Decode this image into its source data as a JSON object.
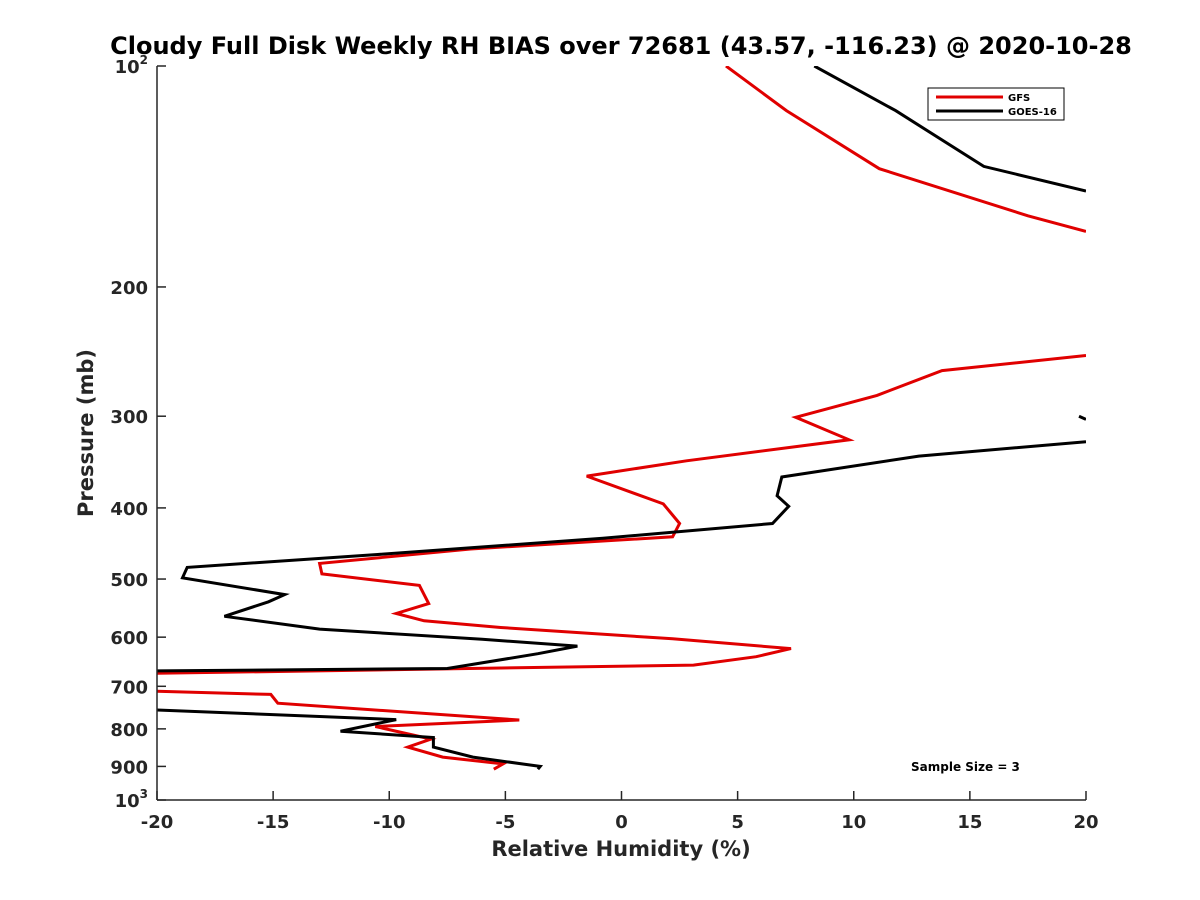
{
  "chart_data": {
    "type": "line",
    "title": "Cloudy Full Disk Weekly RH BIAS over 72681 (43.57, -116.23) @ 2020-10-28",
    "xlabel": "Relative Humidity (%)",
    "ylabel": "Pressure (mb)",
    "xlim": [
      -20,
      20
    ],
    "ylim": [
      100,
      1000
    ],
    "y_scale": "log",
    "y_reversed": true,
    "grid": false,
    "legend_position": "top-right",
    "annotation": "Sample Size = 3",
    "x_ticks": [
      {
        "value": -20,
        "label": "-20"
      },
      {
        "value": -15,
        "label": "-15"
      },
      {
        "value": -10,
        "label": "-10"
      },
      {
        "value": -5,
        "label": "-5"
      },
      {
        "value": 0,
        "label": "0"
      },
      {
        "value": 5,
        "label": "5"
      },
      {
        "value": 10,
        "label": "10"
      },
      {
        "value": 15,
        "label": "15"
      },
      {
        "value": 20,
        "label": "20"
      }
    ],
    "y_ticks": [
      {
        "value": 100,
        "label": "10",
        "sup": "2"
      },
      {
        "value": 200,
        "label": "200",
        "sup": ""
      },
      {
        "value": 300,
        "label": "300",
        "sup": ""
      },
      {
        "value": 400,
        "label": "400",
        "sup": ""
      },
      {
        "value": 500,
        "label": "500",
        "sup": ""
      },
      {
        "value": 600,
        "label": "600",
        "sup": ""
      },
      {
        "value": 700,
        "label": "700",
        "sup": ""
      },
      {
        "value": 800,
        "label": "800",
        "sup": ""
      },
      {
        "value": 900,
        "label": "900",
        "sup": ""
      },
      {
        "value": 1000,
        "label": "10",
        "sup": "3"
      }
    ],
    "series": [
      {
        "name": "GFS",
        "color": "#e00000",
        "points": [
          [
            4.5,
            100
          ],
          [
            7.1,
            115
          ],
          [
            11.1,
            138
          ],
          [
            17.5,
            160
          ],
          [
            20,
            168
          ],
          null,
          [
            20,
            248
          ],
          [
            13.8,
            260
          ],
          [
            11.0,
            281
          ],
          [
            7.5,
            301
          ],
          [
            9.8,
            323
          ],
          [
            2.8,
            345
          ],
          [
            -1.5,
            362
          ],
          [
            1.8,
            395
          ],
          [
            2.5,
            420
          ],
          [
            2.2,
            438
          ],
          [
            -6.5,
            455
          ],
          [
            -13.0,
            476
          ],
          [
            -12.9,
            492
          ],
          [
            -8.7,
            510
          ],
          [
            -8.3,
            540
          ],
          [
            -9.7,
            557
          ],
          [
            -8.5,
            570
          ],
          [
            -5.2,
            582
          ],
          [
            2.2,
            603
          ],
          [
            7.3,
            622
          ],
          [
            5.8,
            638
          ],
          [
            3.1,
            655
          ],
          [
            -20,
            672
          ],
          null,
          [
            -20,
            711
          ],
          [
            -15.1,
            718
          ],
          [
            -14.8,
            738
          ],
          [
            -4.4,
            778
          ],
          [
            -10.6,
            794
          ],
          [
            -8.2,
            826
          ],
          [
            -9.2,
            847
          ],
          [
            -7.7,
            874
          ],
          [
            -5.1,
            893
          ],
          [
            -5.5,
            908
          ]
        ]
      },
      {
        "name": "GOES-16",
        "color": "#000000",
        "points": [
          [
            8.3,
            100
          ],
          [
            11.8,
            115
          ],
          [
            15.6,
            137
          ],
          [
            20,
            148
          ],
          null,
          [
            19.7,
            300
          ],
          [
            20,
            303
          ],
          null,
          [
            20,
            325
          ],
          [
            12.8,
            340
          ],
          [
            6.9,
            363
          ],
          [
            6.7,
            385
          ],
          [
            7.2,
            398
          ],
          [
            6.5,
            420
          ],
          [
            -0.8,
            440
          ],
          [
            -10.5,
            463
          ],
          [
            -18.7,
            482
          ],
          [
            -18.9,
            498
          ],
          [
            -14.5,
            525
          ],
          [
            -15.2,
            537
          ],
          [
            -17.1,
            562
          ],
          [
            -13.0,
            585
          ],
          [
            -6.0,
            604
          ],
          [
            -1.9,
            617
          ],
          [
            -3.6,
            632
          ],
          [
            -7.5,
            662
          ],
          [
            -20,
            667
          ],
          null,
          [
            -20,
            754
          ],
          [
            -9.7,
            777
          ],
          [
            -12.1,
            806
          ],
          [
            -8.1,
            822
          ],
          [
            -8.1,
            847
          ],
          [
            -6.4,
            874
          ],
          [
            -3.5,
            900
          ],
          [
            -3.6,
            908
          ]
        ]
      }
    ]
  }
}
